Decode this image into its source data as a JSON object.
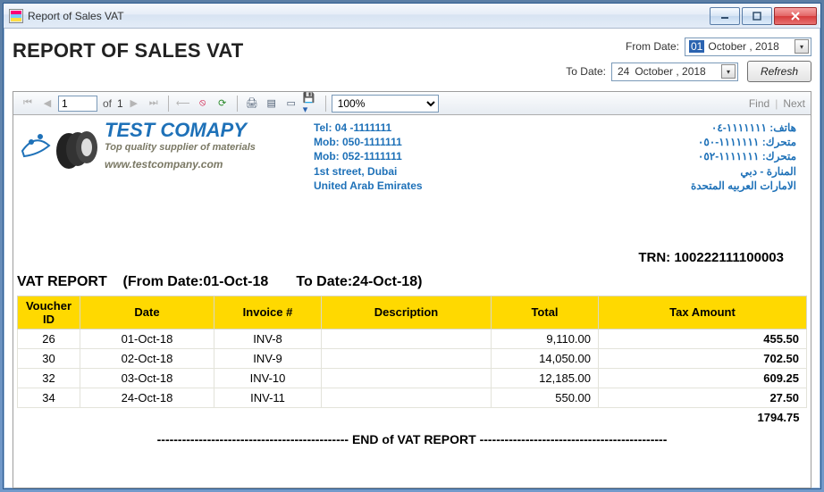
{
  "window": {
    "title": "Report of Sales VAT"
  },
  "header": {
    "page_title": "REPORT OF SALES VAT",
    "from_label": "From Date:",
    "to_label": "To Date:",
    "from_day": "01",
    "from_rest": "October  , 2018",
    "to_day": "24",
    "to_rest": "October  , 2018",
    "refresh": "Refresh"
  },
  "toolbar": {
    "page": "1",
    "of_label": "of",
    "page_count": "1",
    "zoom": "100%",
    "find": "Find",
    "next": "Next"
  },
  "letterhead": {
    "company": "TEST COMAPY",
    "tagline": "Top quality supplier of materials",
    "website": "www.testcompany.com",
    "en": {
      "tel": "Tel:   04 -1111111",
      "mob1": "Mob: 050-1111111",
      "mob2": "Mob: 052-1111111",
      "addr1": "1st street, Dubai",
      "addr2": "United Arab Emirates"
    },
    "ar": {
      "l1": "هاتف: ١١١١١١١-٠٤",
      "l2": "متحرك: ١١١١١١١-٠٥٠",
      "l3": "متحرك: ١١١١١١١-٠٥٢",
      "l4": "المنارة - دبي",
      "l5": "الامارات العربيه المتحدة"
    }
  },
  "report": {
    "trn_label": "TRN: 100222111100003",
    "title_prefix": "VAT REPORT",
    "title_range": "(From Date:01-Oct-18       To Date:24-Oct-18)",
    "columns": {
      "voucher": "Voucher ID",
      "date": "Date",
      "invoice": "Invoice #",
      "desc": "Description",
      "total": "Total",
      "tax": "Tax Amount"
    },
    "rows": [
      {
        "voucher": "26",
        "date": "01-Oct-18",
        "invoice": "INV-8",
        "desc": "",
        "total": "9,110.00",
        "tax": "455.50"
      },
      {
        "voucher": "30",
        "date": "02-Oct-18",
        "invoice": "INV-9",
        "desc": "",
        "total": "14,050.00",
        "tax": "702.50"
      },
      {
        "voucher": "32",
        "date": "03-Oct-18",
        "invoice": "INV-10",
        "desc": "",
        "total": "12,185.00",
        "tax": "609.25"
      },
      {
        "voucher": "34",
        "date": "24-Oct-18",
        "invoice": "INV-11",
        "desc": "",
        "total": "550.00",
        "tax": "27.50"
      }
    ],
    "total_tax": "1794.75",
    "end_line": "---------------------------------------------- END of VAT REPORT ---------------------------------------------"
  },
  "style": {
    "accent": "#1e71b8",
    "table_header_bg": "#ffd900",
    "col_widths": [
      "70px",
      "150px",
      "120px",
      "190px",
      "120px",
      "120px"
    ]
  }
}
